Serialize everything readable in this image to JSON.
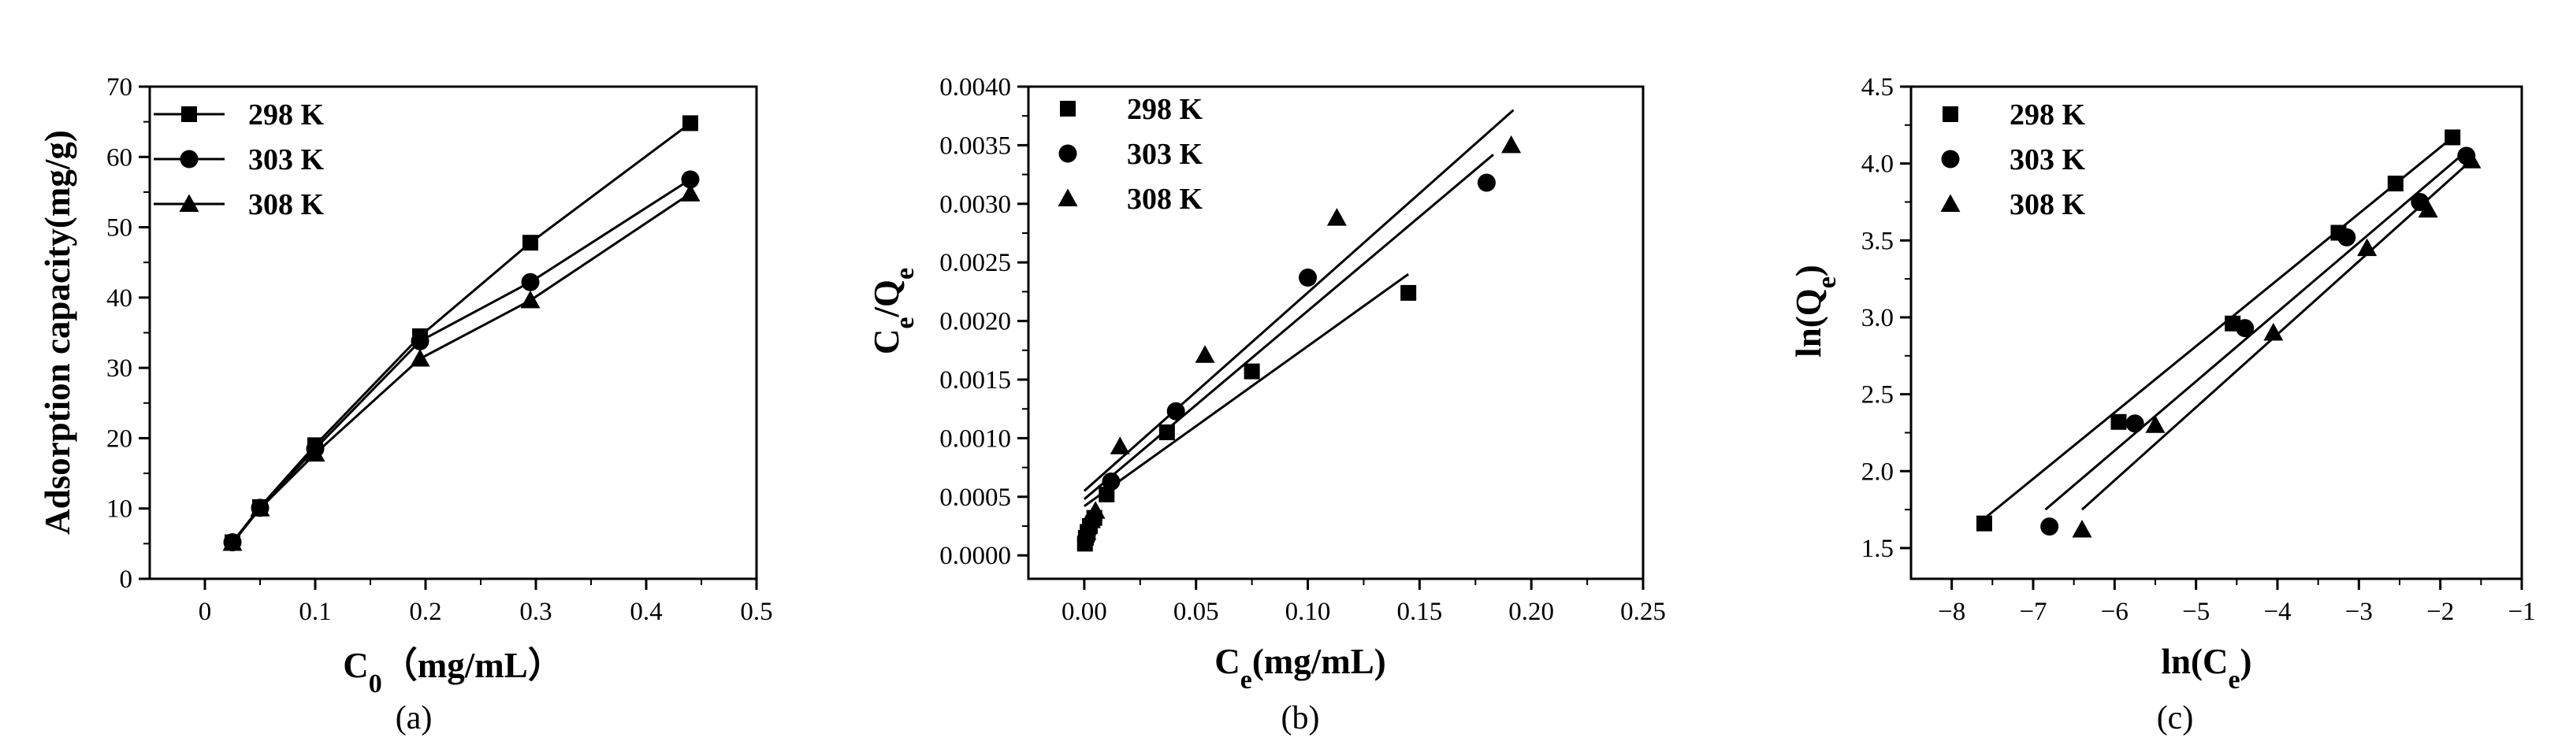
{
  "chart_data": [
    {
      "type": "line",
      "caption": "(a)",
      "ylabel": "Adsorption capacity(mg/g)",
      "xlabel_main": "C",
      "xlabel_sub": "0",
      "xlabel_unit": "（mg/mL）",
      "xlim": [
        -0.05,
        0.5
      ],
      "ylim": [
        0,
        70
      ],
      "xticks": [
        0.0,
        0.1,
        0.2,
        0.3,
        0.4,
        0.5
      ],
      "yticks": [
        0,
        10,
        20,
        30,
        40,
        50,
        60,
        70
      ],
      "legend_position": "top-left",
      "series": [
        {
          "name": "298 K",
          "marker": "square",
          "x": [
            0.025,
            0.05,
            0.1,
            0.195,
            0.295,
            0.44
          ],
          "y": [
            5.2,
            10.2,
            19.0,
            34.5,
            47.8,
            64.8
          ]
        },
        {
          "name": "303 K",
          "marker": "circle",
          "x": [
            0.025,
            0.05,
            0.1,
            0.195,
            0.295,
            0.44
          ],
          "y": [
            5.2,
            10.1,
            18.5,
            33.8,
            42.2,
            56.8
          ]
        },
        {
          "name": "308 K",
          "marker": "triangle",
          "x": [
            0.025,
            0.05,
            0.1,
            0.195,
            0.295,
            0.44
          ],
          "y": [
            5.1,
            10.0,
            17.8,
            31.3,
            39.6,
            54.8
          ]
        }
      ]
    },
    {
      "type": "scatter",
      "caption": "(b)",
      "ylabel_main": "C",
      "ylabel_sub1": "e",
      "ylabel_mid": "/Q",
      "ylabel_sub2": "e",
      "xlabel_main": "C",
      "xlabel_sub": "e",
      "xlabel_unit": "(mg/mL)",
      "xlim": [
        -0.025,
        0.25
      ],
      "ylim": [
        -0.0002,
        0.004
      ],
      "xticks": [
        "0.00",
        "0.05",
        "0.10",
        "0.15",
        "0.20",
        "0.25"
      ],
      "yticks": [
        "0.0000",
        "0.0005",
        "0.0010",
        "0.0015",
        "0.0020",
        "0.0025",
        "0.0030",
        "0.0035",
        "0.0040"
      ],
      "legend_position": "top-left",
      "series": [
        {
          "name": "298 K",
          "marker": "square",
          "x": [
            0.0003,
            0.0007,
            0.0015,
            0.0025,
            0.0045,
            0.01,
            0.037,
            0.075,
            0.145
          ],
          "y": [
            0.0001,
            0.00015,
            0.0002,
            0.00025,
            0.00032,
            0.00052,
            0.00105,
            0.00157,
            0.00224
          ],
          "fit_x": [
            0.0,
            0.145
          ],
          "fit_y": [
            0.00042,
            0.0024
          ]
        },
        {
          "name": "303 K",
          "marker": "circle",
          "x": [
            0.001,
            0.002,
            0.004,
            0.012,
            0.041,
            0.1,
            0.18
          ],
          "y": [
            0.00015,
            0.00022,
            0.0003,
            0.00063,
            0.00123,
            0.00237,
            0.00318
          ],
          "fit_x": [
            0.0,
            0.183
          ],
          "fit_y": [
            0.00048,
            0.00342
          ]
        },
        {
          "name": "308 K",
          "marker": "triangle",
          "x": [
            0.001,
            0.003,
            0.005,
            0.016,
            0.054,
            0.113,
            0.191
          ],
          "y": [
            0.0002,
            0.0003,
            0.00038,
            0.00093,
            0.00171,
            0.00288,
            0.0035
          ],
          "fit_x": [
            0.0,
            0.192
          ],
          "fit_y": [
            0.00055,
            0.0038
          ]
        }
      ]
    },
    {
      "type": "scatter",
      "caption": "(c)",
      "ylabel_main": "ln(Q",
      "ylabel_sub": "e",
      "ylabel_end": ")",
      "xlabel_main": "ln(C",
      "xlabel_sub": "e",
      "xlabel_end": ")",
      "xlim": [
        -8.5,
        -1
      ],
      "ylim": [
        1.3,
        4.5
      ],
      "xticks": [
        "−8",
        "−7",
        "−6",
        "−5",
        "−4",
        "−3",
        "−2",
        "−1"
      ],
      "xtick_values": [
        -8,
        -7,
        -6,
        -5,
        -4,
        -3,
        -2,
        -1
      ],
      "yticks": [
        "1.5",
        "2.0",
        "2.5",
        "3.0",
        "3.5",
        "4.0",
        "4.5"
      ],
      "ytick_values": [
        1.5,
        2.0,
        2.5,
        3.0,
        3.5,
        4.0,
        4.5
      ],
      "legend_position": "top-left",
      "series": [
        {
          "name": "298 K",
          "marker": "square",
          "x": [
            -7.6,
            -5.95,
            -4.55,
            -3.25,
            -2.55,
            -1.85
          ],
          "y": [
            1.66,
            2.32,
            2.96,
            3.55,
            3.87,
            4.17
          ],
          "fit_x": [
            -7.65,
            -1.85
          ],
          "fit_y": [
            1.67,
            4.17
          ]
        },
        {
          "name": "303 K",
          "marker": "circle",
          "x": [
            -6.8,
            -5.75,
            -4.4,
            -3.15,
            -2.25,
            -1.68
          ],
          "y": [
            1.64,
            2.31,
            2.93,
            3.52,
            3.75,
            4.05
          ],
          "fit_x": [
            -6.85,
            -1.68
          ],
          "fit_y": [
            1.75,
            4.08
          ]
        },
        {
          "name": "308 K",
          "marker": "triangle",
          "x": [
            -6.4,
            -5.5,
            -4.05,
            -2.9,
            -2.15,
            -1.62
          ],
          "y": [
            1.62,
            2.3,
            2.9,
            3.45,
            3.7,
            4.02
          ],
          "fit_x": [
            -6.4,
            -1.62
          ],
          "fit_y": [
            1.75,
            4.02
          ]
        }
      ]
    }
  ]
}
